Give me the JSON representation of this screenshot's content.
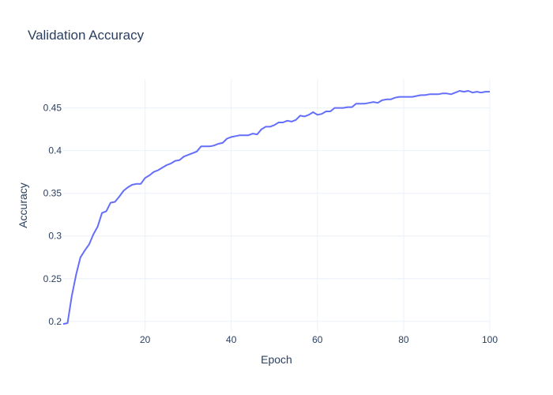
{
  "chart_data": {
    "type": "line",
    "title": "Validation Accuracy",
    "xlabel": "Epoch",
    "ylabel": "Accuracy",
    "xlim": [
      1,
      100
    ],
    "ylim": [
      0.1878,
      0.4839
    ],
    "xticks": [
      20,
      40,
      60,
      80,
      100
    ],
    "xtick_labels": [
      "20",
      "40",
      "60",
      "80",
      "100"
    ],
    "yticks": [
      0.2,
      0.25,
      0.3,
      0.35,
      0.4,
      0.45
    ],
    "ytick_labels": [
      "0.2",
      "0.25",
      "0.3",
      "0.35",
      "0.4",
      "0.45"
    ],
    "grid": true,
    "legend": "none",
    "line_color": "#636efa",
    "series": [
      {
        "x": [
          1,
          2,
          3,
          4,
          5,
          6,
          7,
          8,
          9,
          10,
          11,
          12,
          13,
          14,
          15,
          16,
          17,
          18,
          19,
          20,
          21,
          22,
          23,
          24,
          25,
          26,
          27,
          28,
          29,
          30,
          31,
          32,
          33,
          34,
          35,
          36,
          37,
          38,
          39,
          40,
          41,
          42,
          43,
          44,
          45,
          46,
          47,
          48,
          49,
          50,
          51,
          52,
          53,
          54,
          55,
          56,
          57,
          58,
          59,
          60,
          61,
          62,
          63,
          64,
          65,
          66,
          67,
          68,
          69,
          70,
          71,
          72,
          73,
          74,
          75,
          76,
          77,
          78,
          79,
          80,
          81,
          82,
          83,
          84,
          85,
          86,
          87,
          88,
          89,
          90,
          91,
          92,
          93,
          94,
          95,
          96,
          97,
          98,
          99,
          100
        ],
        "y": [
          0.197,
          0.198,
          0.23,
          0.255,
          0.275,
          0.283,
          0.29,
          0.302,
          0.311,
          0.327,
          0.329,
          0.339,
          0.34,
          0.346,
          0.353,
          0.357,
          0.36,
          0.361,
          0.361,
          0.368,
          0.371,
          0.375,
          0.377,
          0.38,
          0.383,
          0.385,
          0.388,
          0.389,
          0.393,
          0.395,
          0.397,
          0.399,
          0.405,
          0.405,
          0.405,
          0.406,
          0.408,
          0.409,
          0.414,
          0.416,
          0.417,
          0.418,
          0.418,
          0.418,
          0.42,
          0.419,
          0.425,
          0.428,
          0.428,
          0.43,
          0.433,
          0.433,
          0.435,
          0.434,
          0.436,
          0.441,
          0.44,
          0.442,
          0.445,
          0.442,
          0.443,
          0.446,
          0.446,
          0.45,
          0.45,
          0.45,
          0.451,
          0.451,
          0.455,
          0.455,
          0.455,
          0.456,
          0.457,
          0.456,
          0.459,
          0.46,
          0.46,
          0.462,
          0.463,
          0.463,
          0.463,
          0.463,
          0.464,
          0.465,
          0.465,
          0.466,
          0.466,
          0.466,
          0.467,
          0.467,
          0.466,
          0.468,
          0.47,
          0.469,
          0.47,
          0.468,
          0.469,
          0.468,
          0.469,
          0.469
        ]
      }
    ]
  }
}
